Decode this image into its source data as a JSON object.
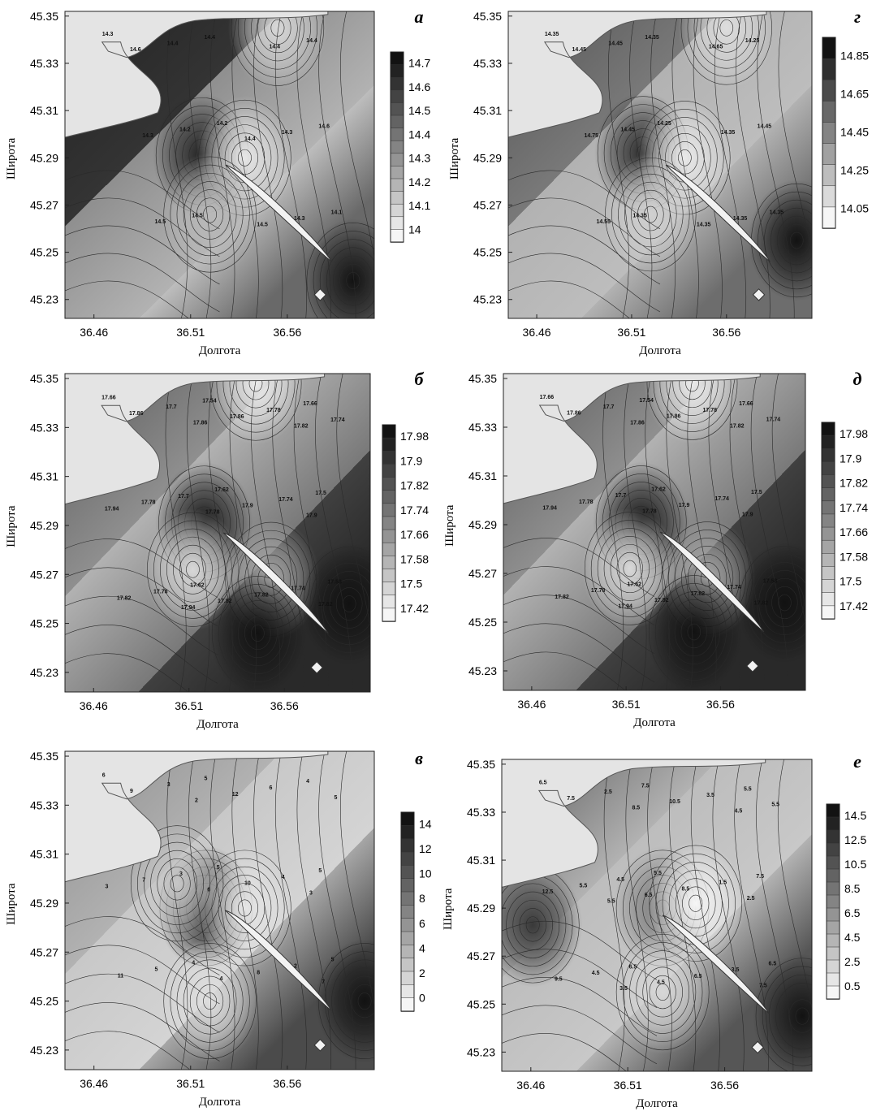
{
  "figure": {
    "xlabel": "Долгота",
    "ylabel": "Широта",
    "colors": {
      "land": "#e4e4e4",
      "sea_light": "#f4f4f4",
      "sea_dark": "#141414",
      "contour": "#2a2a2a",
      "frame": "#222222"
    }
  },
  "chart_data": [
    {
      "type": "heatmap",
      "panel_label": "а",
      "xlabel": "Долгота",
      "ylabel": "Широта",
      "x_ticks": [
        36.46,
        36.51,
        36.56
      ],
      "y_ticks": [
        45.35,
        45.33,
        45.31,
        45.29,
        45.27,
        45.25,
        45.23
      ],
      "xlim": [
        36.445,
        36.605
      ],
      "ylim": [
        45.222,
        45.352
      ],
      "colorbar": {
        "min": 14,
        "max": 14.75,
        "ticks": [
          "14.7",
          "14.6",
          "14.5",
          "14.4",
          "14.3",
          "14.2",
          "14.1",
          "14"
        ]
      },
      "contour_labels": [
        "14.3",
        "14.2",
        "14.1",
        "14.4",
        "14.6",
        "14.5",
        "14.4",
        "14.2",
        "14.3",
        "14.4",
        "14.3",
        "14.5",
        "14.4",
        "14.3",
        "14.5",
        "14.6",
        "14.4"
      ],
      "field_level": [
        0.9,
        0.85,
        0.45,
        0.3,
        0.25,
        0.62
      ],
      "field_pos": [
        0.12,
        0.35,
        0.33,
        0.62,
        0.55,
        0.8
      ],
      "extrema": [
        {
          "x": 36.516,
          "y": 45.291,
          "v": 14.7
        },
        {
          "x": 36.538,
          "y": 45.29,
          "v": 14.05
        },
        {
          "x": 36.52,
          "y": 45.266,
          "v": 14.2
        },
        {
          "x": 36.594,
          "y": 45.238,
          "v": 14.75
        },
        {
          "x": 36.555,
          "y": 45.345,
          "v": 14.1
        }
      ]
    },
    {
      "type": "heatmap",
      "panel_label": "г",
      "xlabel": "Долгота",
      "ylabel": "Широта",
      "x_ticks": [
        36.46,
        36.51,
        36.56
      ],
      "y_ticks": [
        45.35,
        45.33,
        45.31,
        45.29,
        45.27,
        45.25,
        45.23
      ],
      "xlim": [
        36.445,
        36.605
      ],
      "ylim": [
        45.222,
        45.352
      ],
      "colorbar": {
        "min": 14.05,
        "max": 14.95,
        "ticks": [
          "14.85",
          "14.65",
          "14.45",
          "14.25",
          "14.05"
        ]
      },
      "contour_labels": [
        "14.35",
        "14.25",
        "14.35",
        "14.35",
        "14.45",
        "14.35",
        "14.25",
        "14.45",
        "14.35",
        "14.45",
        "14.35",
        "14.55",
        "14.65",
        "14.75",
        "14.35",
        "14.45"
      ],
      "field_level": [
        0.65,
        0.55,
        0.3,
        0.25,
        0.3,
        0.6
      ],
      "field_pos": [
        0.12,
        0.35,
        0.33,
        0.62,
        0.55,
        0.8
      ],
      "extrema": [
        {
          "x": 36.516,
          "y": 45.292,
          "v": 14.85
        },
        {
          "x": 36.538,
          "y": 45.29,
          "v": 14.1
        },
        {
          "x": 36.52,
          "y": 45.266,
          "v": 14.2
        },
        {
          "x": 36.597,
          "y": 45.255,
          "v": 14.95
        },
        {
          "x": 36.56,
          "y": 45.345,
          "v": 14.15
        }
      ]
    },
    {
      "type": "heatmap",
      "panel_label": "б",
      "xlabel": "Долгота",
      "ylabel": "Широта",
      "x_ticks": [
        36.46,
        36.51,
        36.56
      ],
      "y_ticks": [
        45.35,
        45.33,
        45.31,
        45.29,
        45.27,
        45.25,
        45.23
      ],
      "xlim": [
        36.445,
        36.605
      ],
      "ylim": [
        45.222,
        45.352
      ],
      "colorbar": {
        "min": 17.42,
        "max": 18.02,
        "ticks": [
          "17.98",
          "17.9",
          "17.82",
          "17.74",
          "17.66",
          "17.58",
          "17.5",
          "17.42"
        ]
      },
      "contour_labels": [
        "17.66",
        "17.62",
        "17.58",
        "17.54",
        "17.5",
        "17.62",
        "17.66",
        "17.7",
        "17.74",
        "17.7",
        "17.74",
        "17.78",
        "17.78",
        "17.78",
        "17.82",
        "17.86",
        "17.9",
        "17.82",
        "17.86",
        "17.94",
        "17.82",
        "17.74",
        "17.78",
        "17.82",
        "17.86",
        "17.9",
        "17.94",
        "17.82"
      ],
      "field_level": [
        0.6,
        0.45,
        0.3,
        0.55,
        0.8,
        0.9
      ],
      "field_pos": [
        0.12,
        0.35,
        0.33,
        0.62,
        0.55,
        0.8
      ],
      "extrema": [
        {
          "x": 36.518,
          "y": 45.291,
          "v": 18.0
        },
        {
          "x": 36.512,
          "y": 45.272,
          "v": 17.5
        },
        {
          "x": 36.553,
          "y": 45.268,
          "v": 17.62
        },
        {
          "x": 36.546,
          "y": 45.246,
          "v": 18.02
        },
        {
          "x": 36.594,
          "y": 45.258,
          "v": 18.02
        },
        {
          "x": 36.545,
          "y": 45.348,
          "v": 17.45
        }
      ]
    },
    {
      "type": "heatmap",
      "panel_label": "д",
      "xlabel": "Долгота",
      "ylabel": "Широта",
      "x_ticks": [
        36.46,
        36.51,
        36.56
      ],
      "y_ticks": [
        45.35,
        45.33,
        45.31,
        45.29,
        45.27,
        45.25,
        45.23
      ],
      "xlim": [
        36.445,
        36.605
      ],
      "ylim": [
        45.222,
        45.352
      ],
      "colorbar": {
        "min": 17.42,
        "max": 18.02,
        "ticks": [
          "17.98",
          "17.9",
          "17.82",
          "17.74",
          "17.66",
          "17.58",
          "17.5",
          "17.42"
        ]
      },
      "contour_labels": [
        "17.66",
        "17.62",
        "17.58",
        "17.54",
        "17.5",
        "17.62",
        "17.66",
        "17.7",
        "17.74",
        "17.7",
        "17.74",
        "17.78",
        "17.78",
        "17.78",
        "17.82",
        "17.86",
        "17.9",
        "17.82",
        "17.86",
        "17.94",
        "17.82",
        "17.74",
        "17.78",
        "17.82",
        "17.86",
        "17.9",
        "17.94",
        "17.82"
      ],
      "field_level": [
        0.6,
        0.45,
        0.3,
        0.55,
        0.8,
        0.9
      ],
      "field_pos": [
        0.12,
        0.35,
        0.33,
        0.62,
        0.55,
        0.8
      ],
      "extrema": [
        {
          "x": 36.518,
          "y": 45.291,
          "v": 18.0
        },
        {
          "x": 36.512,
          "y": 45.272,
          "v": 17.5
        },
        {
          "x": 36.553,
          "y": 45.268,
          "v": 17.62
        },
        {
          "x": 36.546,
          "y": 45.246,
          "v": 18.02
        },
        {
          "x": 36.594,
          "y": 45.258,
          "v": 18.02
        },
        {
          "x": 36.545,
          "y": 45.348,
          "v": 17.45
        }
      ]
    },
    {
      "type": "heatmap",
      "panel_label": "в",
      "xlabel": "Долгота",
      "ylabel": "Широта",
      "x_ticks": [
        36.46,
        36.51,
        36.56
      ],
      "y_ticks": [
        45.35,
        45.33,
        45.31,
        45.29,
        45.27,
        45.25,
        45.23
      ],
      "xlim": [
        36.445,
        36.605
      ],
      "ylim": [
        45.222,
        45.352
      ],
      "colorbar": {
        "min": 0,
        "max": 14.5,
        "ticks": [
          "14",
          "12",
          "10",
          "8",
          "6",
          "4",
          "2",
          "0"
        ]
      },
      "contour_labels": [
        "6",
        "5",
        "5",
        "5",
        "5",
        "4",
        "4",
        "3",
        "2",
        "3",
        "4",
        "5",
        "6",
        "7",
        "8",
        "9",
        "10",
        "11",
        "12",
        "3",
        "4",
        "5",
        "6",
        "7",
        "2",
        "3"
      ],
      "field_level": [
        0.4,
        0.3,
        0.2,
        0.15,
        0.35,
        0.75
      ],
      "field_pos": [
        0.12,
        0.35,
        0.33,
        0.62,
        0.55,
        0.8
      ],
      "extrema": [
        {
          "x": 36.518,
          "y": 45.288,
          "v": 14
        },
        {
          "x": 36.538,
          "y": 45.288,
          "v": 1
        },
        {
          "x": 36.52,
          "y": 45.25,
          "v": 1.5
        },
        {
          "x": 36.6,
          "y": 45.25,
          "v": 14.5
        },
        {
          "x": 36.503,
          "y": 45.298,
          "v": 3
        }
      ]
    },
    {
      "type": "heatmap",
      "panel_label": "е",
      "xlabel": "Долгота",
      "ylabel": "Широта",
      "x_ticks": [
        36.46,
        36.51,
        36.56
      ],
      "y_ticks": [
        45.35,
        45.33,
        45.31,
        45.29,
        45.27,
        45.25,
        45.23
      ],
      "xlim": [
        36.445,
        36.605
      ],
      "ylim": [
        45.222,
        45.352
      ],
      "colorbar": {
        "min": 0.5,
        "max": 15.0,
        "ticks": [
          "14.5",
          "12.5",
          "10.5",
          "8.5",
          "6.5",
          "4.5",
          "2.5",
          "0.5"
        ]
      },
      "contour_labels": [
        "6.5",
        "5.5",
        "6.5",
        "7.5",
        "7.5",
        "6.5",
        "5.5",
        "4.5",
        "3.5",
        "2.5",
        "1.5",
        "4.5",
        "3.5",
        "5.5",
        "6.5",
        "7.5",
        "8.5",
        "9.5",
        "10.5",
        "12.5",
        "4.5",
        "5.5",
        "6.5",
        "7.5",
        "8.5",
        "2.5",
        "3.5",
        "4.5",
        "5.5"
      ],
      "field_level": [
        0.55,
        0.3,
        0.25,
        0.2,
        0.3,
        0.7
      ],
      "field_pos": [
        0.12,
        0.35,
        0.33,
        0.62,
        0.55,
        0.8
      ],
      "extrema": [
        {
          "x": 36.461,
          "y": 45.283,
          "v": 12.5
        },
        {
          "x": 36.528,
          "y": 45.29,
          "v": 8.5
        },
        {
          "x": 36.545,
          "y": 45.292,
          "v": 0.5
        },
        {
          "x": 36.528,
          "y": 45.255,
          "v": 2.5
        },
        {
          "x": 36.6,
          "y": 45.245,
          "v": 15.0
        }
      ]
    }
  ]
}
